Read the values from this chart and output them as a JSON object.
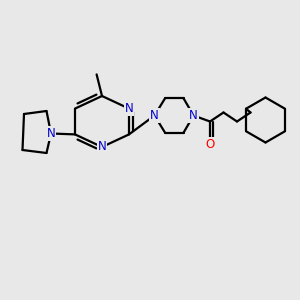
{
  "background_color": "#e8e8e8",
  "bond_color": "#000000",
  "n_color": "#0000cc",
  "o_color": "#ff0000",
  "line_width": 1.6,
  "figsize": [
    3.0,
    3.0
  ],
  "dpi": 100,
  "xlim": [
    0.0,
    1.0
  ],
  "ylim": [
    0.0,
    1.0
  ]
}
